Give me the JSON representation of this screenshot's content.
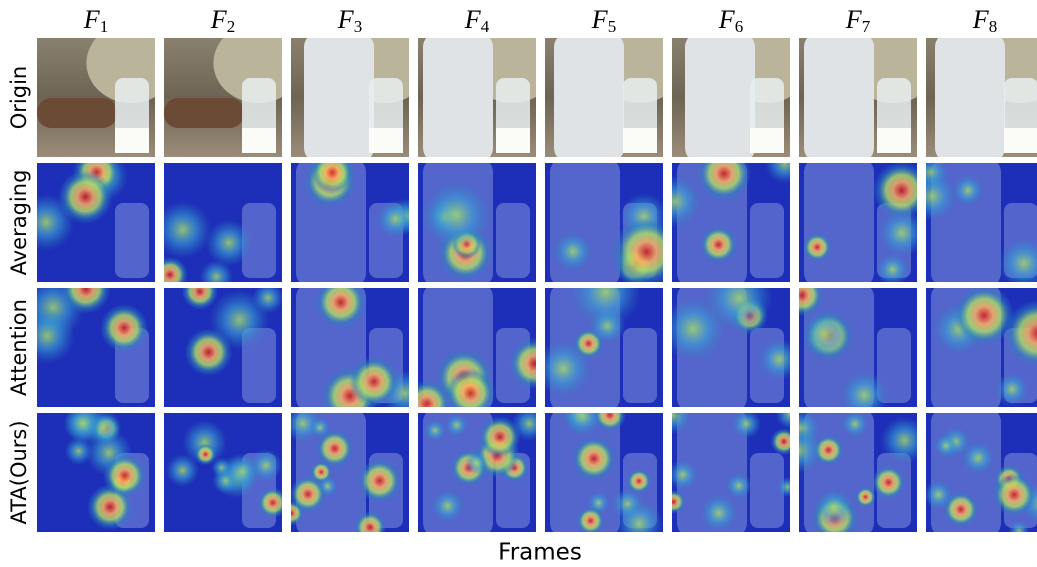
{
  "columns": [
    {
      "symbol": "F",
      "subscript": "1"
    },
    {
      "symbol": "F",
      "subscript": "2"
    },
    {
      "symbol": "F",
      "subscript": "3"
    },
    {
      "symbol": "F",
      "subscript": "4"
    },
    {
      "symbol": "F",
      "subscript": "5"
    },
    {
      "symbol": "F",
      "subscript": "6"
    },
    {
      "symbol": "F",
      "subscript": "7"
    },
    {
      "symbol": "F",
      "subscript": "8"
    }
  ],
  "rows": [
    "Origin",
    "Averaging",
    "Attention",
    "ATA(Ours)"
  ],
  "x_label": "Frames"
}
